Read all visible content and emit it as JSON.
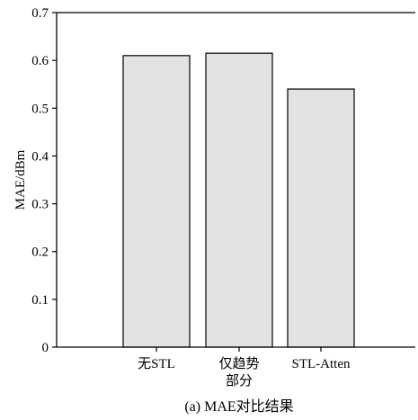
{
  "chart_data": {
    "type": "bar",
    "categories": [
      "无STL",
      "仅趋势\n部分",
      "STL-Atten"
    ],
    "values": [
      0.61,
      0.615,
      0.54
    ],
    "xlabel": "",
    "ylabel": "MAE/dBm",
    "ylim": [
      0,
      0.7
    ],
    "yticks": [
      "0",
      "0.1",
      "0.2",
      "0.3",
      "0.4",
      "0.5",
      "0.6",
      "0.7"
    ],
    "caption": "(a) MAE对比结果",
    "grid": false,
    "bar_color": "#e3e3e3",
    "edge_color": "#000000"
  }
}
